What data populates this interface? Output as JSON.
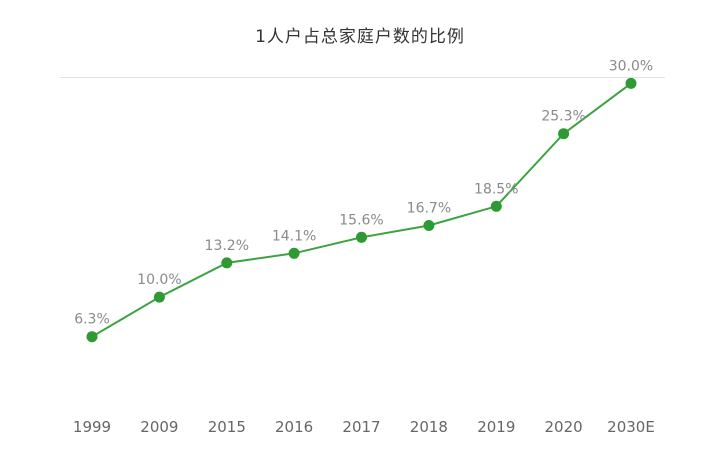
{
  "chart_data": {
    "type": "line",
    "title": "1人户占总家庭户数的比例",
    "xlabel": "",
    "ylabel": "",
    "categories": [
      "1999",
      "2009",
      "2015",
      "2016",
      "2017",
      "2018",
      "2019",
      "2020",
      "2030E"
    ],
    "series": [
      {
        "values": [
          6.3,
          10.0,
          13.2,
          14.1,
          15.6,
          16.7,
          18.5,
          25.3,
          30.0
        ],
        "labels": [
          "6.3%",
          "10.0%",
          "13.2%",
          "14.1%",
          "15.6%",
          "16.7%",
          "18.5%",
          "25.3%",
          "30.0%"
        ]
      }
    ],
    "ylim": [
      0,
      35
    ],
    "grid": true,
    "legend": "none",
    "colors": {
      "line": "#3aa33e",
      "marker": "#2f9a33",
      "grid": "#e3e3e3",
      "label": "#8a8a8a",
      "tick": "#666666",
      "title": "#333333"
    }
  }
}
